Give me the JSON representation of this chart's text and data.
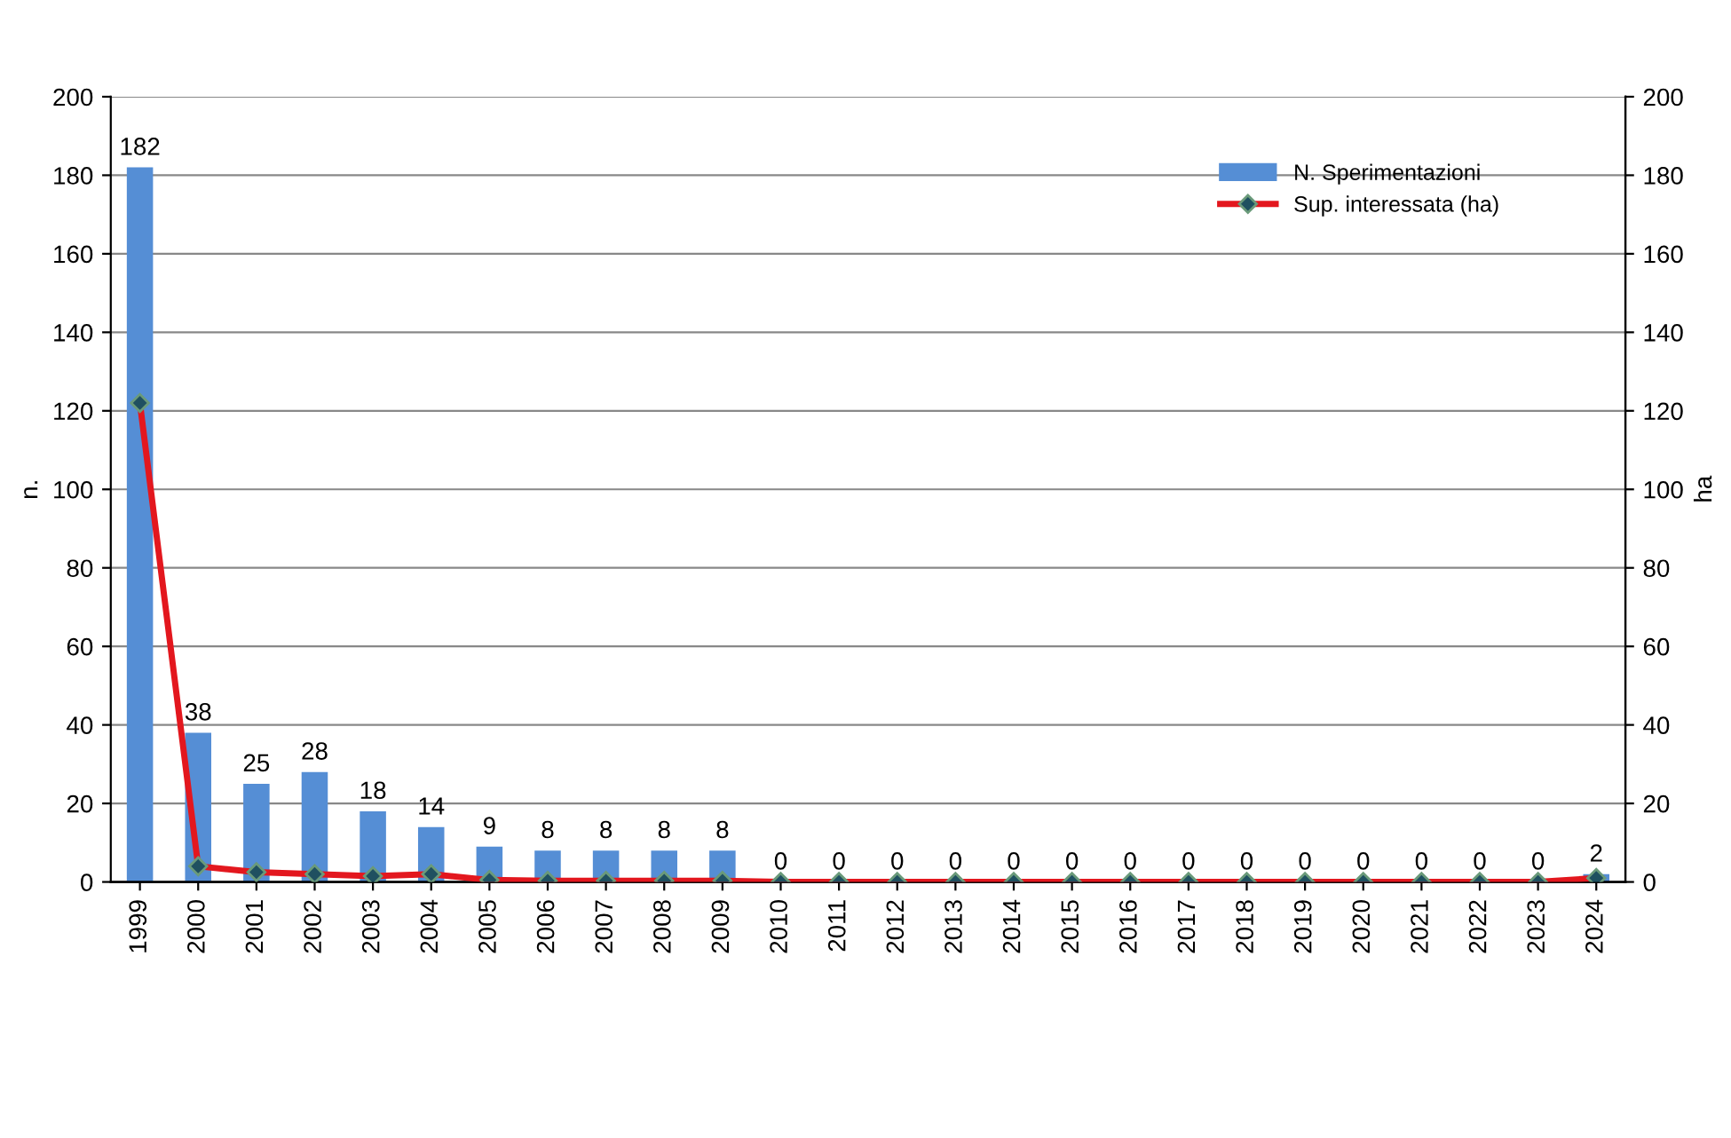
{
  "chart_data": {
    "type": "bar",
    "categories": [
      "1999",
      "2000",
      "2001",
      "2002",
      "2003",
      "2004",
      "2005",
      "2006",
      "2007",
      "2008",
      "2009",
      "2010",
      "2011",
      "2012",
      "2013",
      "2014",
      "2015",
      "2016",
      "2017",
      "2018",
      "2019",
      "2020",
      "2021",
      "2022",
      "2023",
      "2024"
    ],
    "series": [
      {
        "name": "N. Sperimentazioni",
        "axis": "y",
        "color": "#558ed5",
        "values": [
          182,
          38,
          25,
          28,
          18,
          14,
          9,
          8,
          8,
          8,
          8,
          0,
          0,
          0,
          0,
          0,
          0,
          0,
          0,
          0,
          0,
          0,
          0,
          0,
          0,
          2
        ],
        "value_labels": [
          "182",
          "38",
          "25",
          "28",
          "18",
          "14",
          "9",
          "8",
          "8",
          "8",
          "8",
          "0",
          "0",
          "0",
          "0",
          "0",
          "0",
          "0",
          "0",
          "0",
          "0",
          "0",
          "0",
          "0",
          "0",
          "2"
        ]
      },
      {
        "name": "Sup. interessata (ha)",
        "type": "line",
        "axis": "y2",
        "color": "#e3171e",
        "marker": "diamond",
        "line_style": "solid",
        "values": [
          122,
          4,
          2.5,
          2,
          1.5,
          2,
          0.5,
          0.3,
          0.3,
          0.3,
          0.3,
          0,
          0,
          0,
          0,
          0,
          0,
          0,
          0,
          0,
          0,
          0,
          0,
          0,
          0,
          1
        ]
      }
    ],
    "ylabel": "n.",
    "y2label": "ha",
    "ylim": [
      0,
      200
    ],
    "yticks": [
      0,
      20,
      40,
      60,
      80,
      100,
      120,
      140,
      160,
      180,
      200
    ],
    "y2lim": [
      0,
      200
    ],
    "y2ticks": [
      0,
      20,
      40,
      60,
      80,
      100,
      120,
      140,
      160,
      180,
      200
    ],
    "grid": "y",
    "legend": "top right"
  }
}
